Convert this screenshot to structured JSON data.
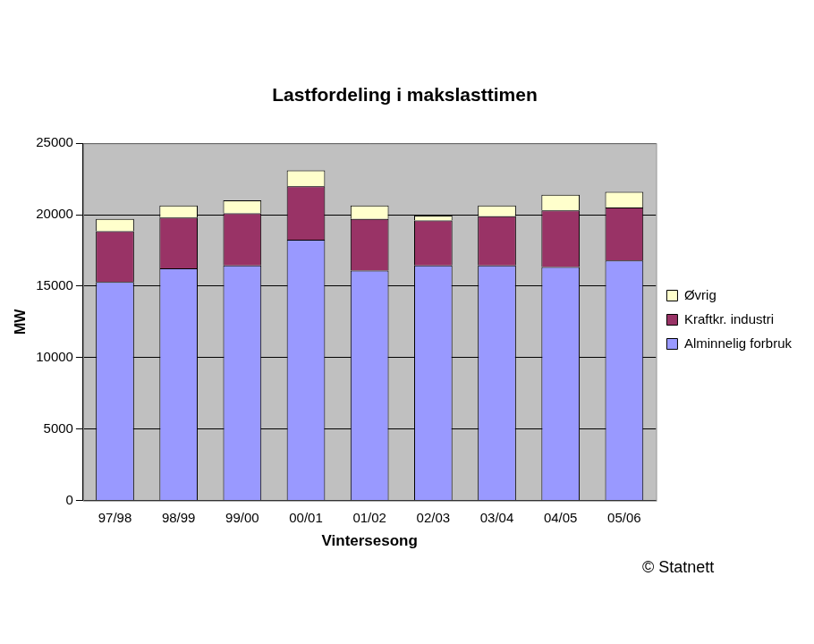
{
  "chart_data": {
    "type": "bar",
    "title": "Lastfordeling i makslasttimen",
    "x_label": "Vintersesong",
    "y_label": "MW",
    "annotation": "© Statnett",
    "categories": [
      "97/98",
      "98/99",
      "99/00",
      "00/01",
      "01/02",
      "02/03",
      "03/04",
      "04/05",
      "05/06"
    ],
    "series": [
      {
        "name": "Alminnelig forbruk",
        "color": "#9999ff",
        "values": [
          15300,
          16250,
          16450,
          18250,
          16100,
          16450,
          16450,
          16350,
          16800
        ]
      },
      {
        "name": "Kraftkr. industri",
        "color": "#993366",
        "values": [
          3550,
          3550,
          3650,
          3750,
          3600,
          3150,
          3450,
          3950,
          3700
        ]
      },
      {
        "name": "Øvrig",
        "color": "#ffffcc",
        "values": [
          850,
          850,
          900,
          1100,
          950,
          350,
          750,
          1100,
          1100
        ]
      }
    ],
    "stacked": true,
    "ylim": [
      0,
      25000
    ],
    "yticks": [
      0,
      5000,
      10000,
      15000,
      20000,
      25000
    ],
    "grid": true,
    "legend": "right"
  }
}
